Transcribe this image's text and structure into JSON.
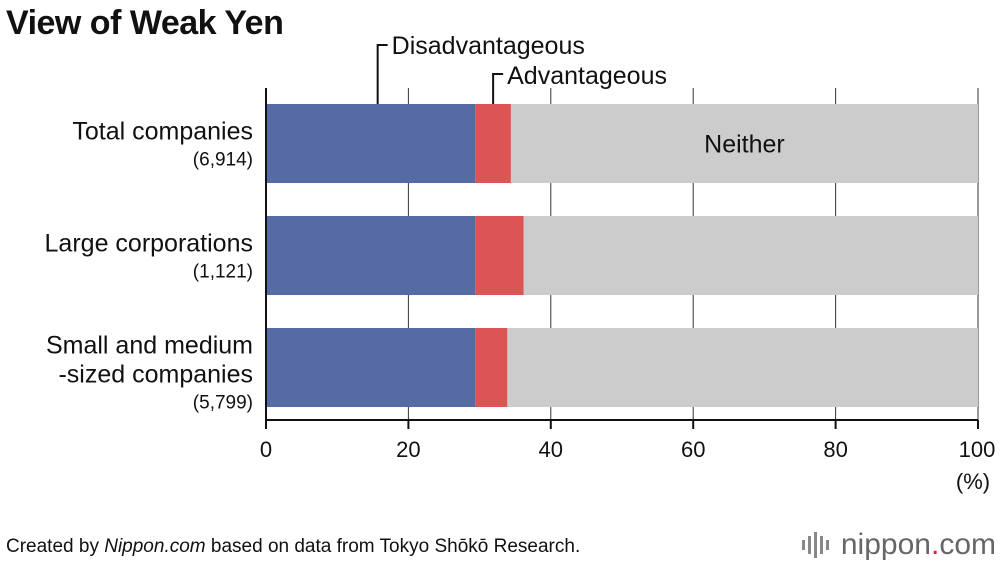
{
  "title": "View of Weak Yen",
  "colors": {
    "disadvantageous": "#566aa6",
    "advantageous": "#db5555",
    "neither": "#cccccc",
    "axis": "#111111"
  },
  "chart_data": {
    "type": "bar",
    "orientation": "horizontal",
    "stacked": true,
    "categories": [
      {
        "lines": [
          "Total companies"
        ],
        "count": "(6,914)"
      },
      {
        "lines": [
          "Large corporations"
        ],
        "count": "(1,121)"
      },
      {
        "lines": [
          "Small and medium",
          "-sized companies"
        ],
        "count": "(5,799)"
      }
    ],
    "series": [
      {
        "name": "Disadvantageous",
        "values": [
          29.4,
          29.4,
          29.4
        ]
      },
      {
        "name": "Advantageous",
        "values": [
          5.0,
          6.8,
          4.5
        ]
      },
      {
        "name": "Neither",
        "values": [
          65.6,
          63.8,
          66.1
        ]
      }
    ],
    "xlim": [
      0,
      100
    ],
    "xticks": [
      "0",
      "20",
      "40",
      "60",
      "80",
      "100"
    ],
    "xunit": "(%)",
    "grid": true,
    "legend": "callouts above first bar"
  },
  "footer": {
    "prefix": "Created by ",
    "source_italic": "Nippon.com",
    "suffix": " based on data from Tokyo Shōkō Research."
  },
  "brand": {
    "name_main": "nippon",
    "name_dot": ".",
    "name_tld": "com",
    "icon": "sound-bars-logo"
  }
}
